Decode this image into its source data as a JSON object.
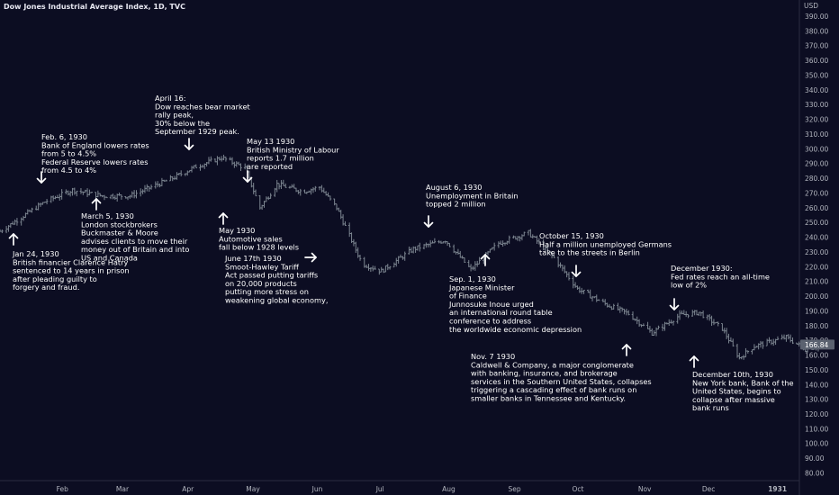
{
  "chart_data": {
    "type": "ohlc",
    "title": "Dow Jones Industrial Average Index, 1D, TVC",
    "ylabel": "USD",
    "ylim": [
      75,
      398
    ],
    "grid": false,
    "y_ticks": [
      "390.00",
      "380.00",
      "370.00",
      "360.00",
      "350.00",
      "340.00",
      "330.00",
      "320.00",
      "310.00",
      "300.00",
      "290.00",
      "280.00",
      "270.00",
      "260.00",
      "250.00",
      "240.00",
      "230.00",
      "220.00",
      "210.00",
      "200.00",
      "190.00",
      "180.00",
      "170.00",
      "160.00",
      "150.00",
      "140.00",
      "130.00",
      "120.00",
      "110.00",
      "100.00",
      "90.00",
      "80.00"
    ],
    "x_ticks": [
      "Feb",
      "Mar",
      "Apr",
      "May",
      "Jun",
      "Jul",
      "Aug",
      "Sep",
      "Oct",
      "Nov",
      "Dec",
      "1931"
    ],
    "last_price": "166.84",
    "series_keypoints": [
      {
        "date": "1930-01-03",
        "close": 244
      },
      {
        "date": "1930-01-24",
        "close": 264
      },
      {
        "date": "1930-02-06",
        "close": 272
      },
      {
        "date": "1930-02-20",
        "close": 268
      },
      {
        "date": "1930-03-05",
        "close": 268
      },
      {
        "date": "1930-03-25",
        "close": 280
      },
      {
        "date": "1930-04-05",
        "close": 288
      },
      {
        "date": "1930-04-17",
        "close": 294
      },
      {
        "date": "1930-04-28",
        "close": 287
      },
      {
        "date": "1930-05-05",
        "close": 260
      },
      {
        "date": "1930-05-13",
        "close": 276
      },
      {
        "date": "1930-05-25",
        "close": 271
      },
      {
        "date": "1930-06-02",
        "close": 274
      },
      {
        "date": "1930-06-10",
        "close": 260
      },
      {
        "date": "1930-06-22",
        "close": 222
      },
      {
        "date": "1930-07-01",
        "close": 217
      },
      {
        "date": "1930-07-16",
        "close": 232
      },
      {
        "date": "1930-07-31",
        "close": 238
      },
      {
        "date": "1930-08-12",
        "close": 218
      },
      {
        "date": "1930-08-25",
        "close": 236
      },
      {
        "date": "1930-09-08",
        "close": 243
      },
      {
        "date": "1930-09-20",
        "close": 226
      },
      {
        "date": "1930-10-01",
        "close": 205
      },
      {
        "date": "1930-10-15",
        "close": 194
      },
      {
        "date": "1930-10-25",
        "close": 188
      },
      {
        "date": "1930-11-05",
        "close": 175
      },
      {
        "date": "1930-11-18",
        "close": 187
      },
      {
        "date": "1930-11-27",
        "close": 189
      },
      {
        "date": "1930-12-08",
        "close": 178
      },
      {
        "date": "1930-12-16",
        "close": 158
      },
      {
        "date": "1930-12-23",
        "close": 166
      },
      {
        "date": "1931-01-07",
        "close": 172
      },
      {
        "date": "1931-01-16",
        "close": 164
      },
      {
        "date": "1931-01-25",
        "close": 167
      }
    ]
  },
  "annotations": [
    {
      "lines": [
        "Jan 24, 1930",
        "British financier Clarence Hatry",
        "sentenced to 14 years in prison",
        "after pleading guilty to",
        "forgery and fraud."
      ],
      "arrow": "up"
    },
    {
      "lines": [
        "Feb. 6, 1930",
        "Bank of England lowers rates",
        "from 5 to 4.5%",
        "Federal Reserve lowers rates",
        "from 4.5 to 4%"
      ],
      "arrow": "down"
    },
    {
      "lines": [
        "March 5, 1930",
        "London stockbrokers",
        "Buckmaster & Moore",
        "advises clients to move their",
        "money out of Britain and into",
        "US and Canada"
      ],
      "arrow": "up"
    },
    {
      "lines": [
        "April 16:",
        "Dow reaches bear market",
        "rally peak,",
        "30% below the",
        "September 1929 peak."
      ],
      "arrow": "down"
    },
    {
      "lines": [
        "May 1930",
        "Automotive sales",
        "fall below 1928 levels"
      ],
      "arrow": "up"
    },
    {
      "lines": [
        "May 13 1930",
        "British Ministry of Labour",
        "reports 1.7 million",
        "are reported"
      ],
      "arrow": "down"
    },
    {
      "lines": [
        "June 17th 1930",
        "Smoot-Hawley Tariff",
        "Act passed putting tariffs",
        "on 20,000 products",
        "putting more stress on",
        "weakening global economy,"
      ],
      "arrow": "right"
    },
    {
      "lines": [
        "August 6, 1930",
        "Unemployment in Britain",
        "topped 2 million"
      ],
      "arrow": "down"
    },
    {
      "lines": [
        "Sep. 1, 1930",
        "Japanese Minister",
        "of Finance",
        "Junnosuke Inoue urged",
        "an international round table",
        "conference to address",
        "the worldwide economic depression"
      ],
      "arrow": "up"
    },
    {
      "lines": [
        "October 15, 1930",
        "Half a million unemployed Germans",
        "take to the streets in Berlin"
      ],
      "arrow": "down"
    },
    {
      "lines": [
        "Nov. 7 1930",
        "Caldwell & Company, a major conglomerate",
        "with banking, insurance, and brokerage",
        "services in the Southern United States, collapses",
        "triggering a cascading effect of bank runs on",
        "smaller banks in Tennessee and Kentucky."
      ],
      "arrow": "up"
    },
    {
      "lines": [
        "December 1930:",
        "Fed rates reach an all-time",
        "low of 2%"
      ],
      "arrow": "down"
    },
    {
      "lines": [
        "December 10th, 1930",
        "New York bank, Bank of the",
        "United States, begins to",
        "collapse after massive",
        "bank runs"
      ],
      "arrow": "up"
    }
  ],
  "colors": {
    "background": "#0c0d22",
    "bars": "#7c8590",
    "text": "#ffffff",
    "axis_text": "#b2b5be",
    "price_label_bg": "#5b6270"
  }
}
